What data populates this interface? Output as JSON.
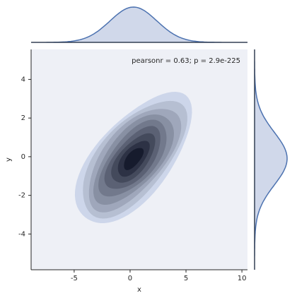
{
  "chart_data": {
    "type": "kde-joint",
    "annotation": "pearsonr = 0.63; p = 2.9e-225",
    "x_label": "x",
    "y_label": "y",
    "xlim": [
      -8.85,
      10.5
    ],
    "xticks": [
      -5,
      0,
      5,
      10
    ],
    "ylim": [
      -5.85,
      5.55
    ],
    "yticks": [
      -4,
      -2,
      0,
      2,
      4
    ],
    "color": "#4c72b0"
  }
}
